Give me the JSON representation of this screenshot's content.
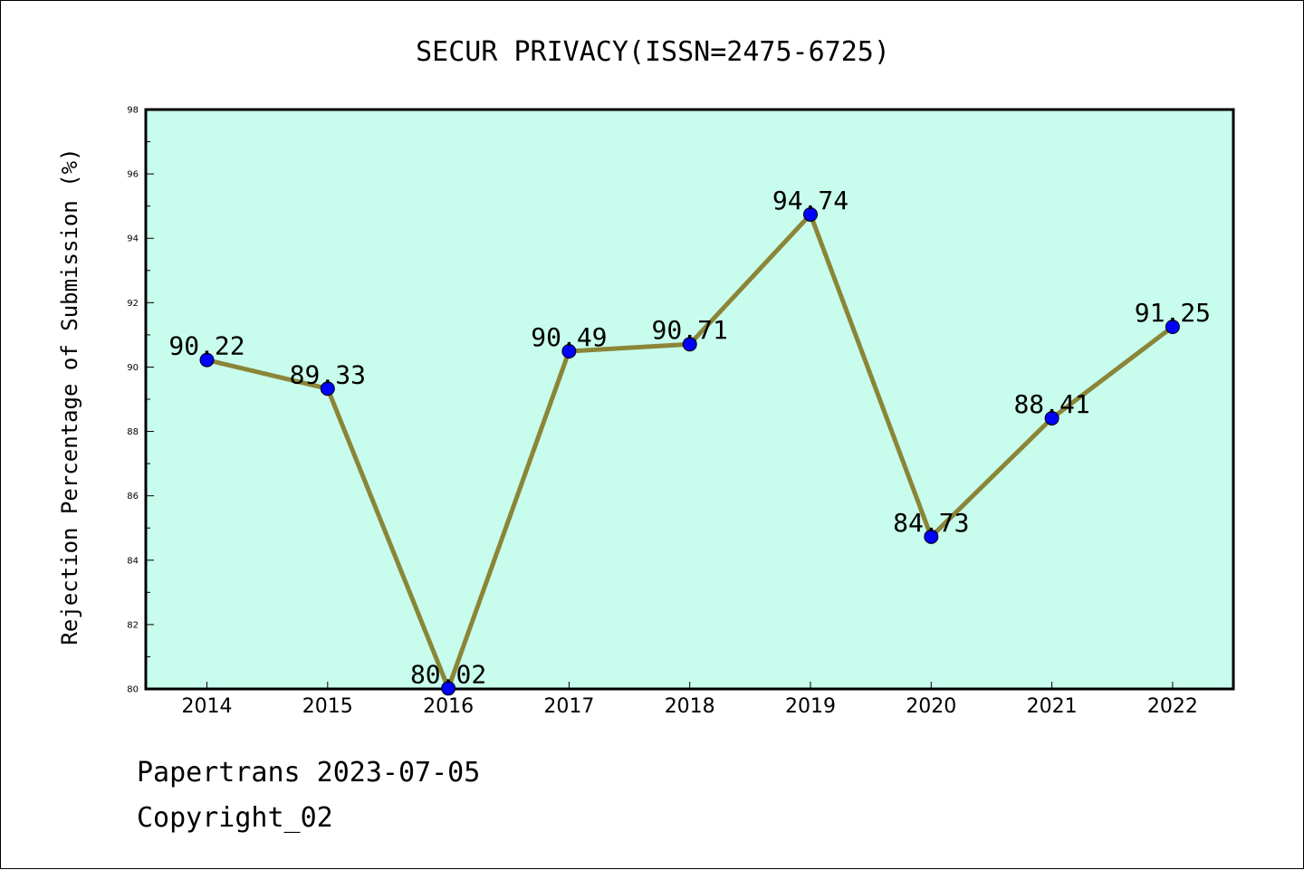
{
  "chart_data": {
    "type": "line",
    "title": "SECUR PRIVACY(ISSN=2475-6725)",
    "xlabel": "",
    "ylabel": "Rejection Percentage of Submission (%)",
    "categories": [
      "2014",
      "2015",
      "2016",
      "2017",
      "2018",
      "2019",
      "2020",
      "2021",
      "2022"
    ],
    "series": [
      {
        "values": [
          90.22,
          89.33,
          80.02,
          90.49,
          90.71,
          94.74,
          84.73,
          88.41,
          91.25
        ],
        "labels": [
          "90.22",
          "89.33",
          "80.02",
          "90.49",
          "90.71",
          "94.74",
          "84.73",
          "88.41",
          "91.25"
        ]
      }
    ],
    "ylim": [
      80,
      98
    ],
    "yticks": [
      "80",
      "82",
      "84",
      "86",
      "88",
      "90",
      "92",
      "94",
      "96",
      "98"
    ],
    "grid": false,
    "colors": {
      "plot_background": "#c8fcec",
      "line": "#8b8538",
      "marker": "#0000ff"
    }
  },
  "footer": {
    "line1": "Papertrans 2023-07-05",
    "line2": "Copyright_02"
  }
}
